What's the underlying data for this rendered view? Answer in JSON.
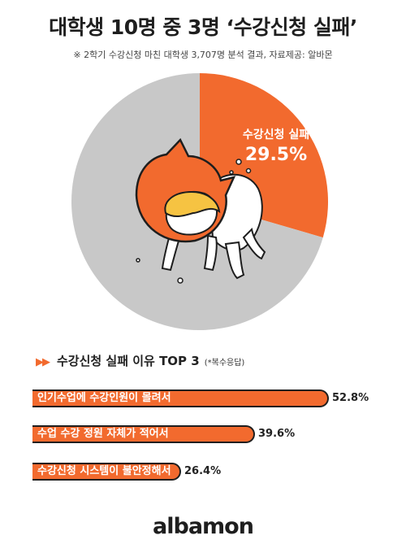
{
  "header": {
    "title": "대학생 10명 중 3명 ‘수강신청 실패’",
    "subtitle": "※ 2학기 수강신청 마친 대학생 3,707명 분석 결과,  자료제공: 알바몬"
  },
  "colors": {
    "accent": "#f26a2e",
    "gray": "#c8c8c8"
  },
  "chart_data": [
    {
      "type": "pie",
      "slices": [
        {
          "label": "수강신청 실패",
          "value": 29.5,
          "value_label": "29.5%",
          "color": "#f26a2e"
        },
        {
          "label": "",
          "value": 70.5,
          "color": "#c8c8c8"
        }
      ]
    },
    {
      "type": "bar",
      "title": "수강신청 실패 이유 TOP 3",
      "note": "(*복수응답)",
      "categories": [
        "인기수업에 수강인원이 몰려서",
        "수업 수강 정원 자체가 적어서",
        "수강신청 시스템이 불안정해서"
      ],
      "values": [
        52.8,
        39.6,
        26.4
      ],
      "value_labels": [
        "52.8%",
        "39.6%",
        "26.4%"
      ]
    }
  ],
  "footer": {
    "logo_text": "albamon"
  }
}
